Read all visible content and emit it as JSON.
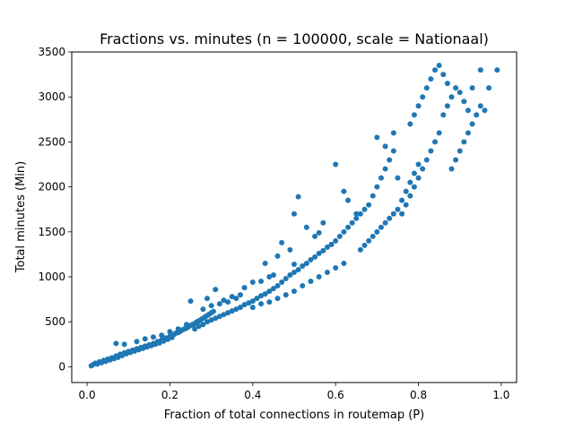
{
  "chart_data": {
    "type": "scatter",
    "title": "Fractions vs. minutes (n = 100000, scale = Nationaal)",
    "xlabel": "Fraction of total connections in routemap (P)",
    "ylabel": "Total minutes (Min)",
    "xlim": [
      -0.037,
      1.037
    ],
    "ylim": [
      -175,
      3500
    ],
    "xticks": [
      0.0,
      0.2,
      0.4,
      0.6,
      0.8,
      1.0
    ],
    "xtick_labels": [
      "0.0",
      "0.2",
      "0.4",
      "0.6",
      "0.8",
      "1.0"
    ],
    "yticks": [
      0,
      500,
      1000,
      1500,
      2000,
      2500,
      3000,
      3500
    ],
    "ytick_labels": [
      "0",
      "500",
      "1000",
      "1500",
      "2000",
      "2500",
      "3000",
      "3500"
    ],
    "grid": false,
    "legend": "none",
    "marker_color": "#1f77b4",
    "points": [
      [
        0.01,
        10
      ],
      [
        0.015,
        25
      ],
      [
        0.02,
        40
      ],
      [
        0.025,
        30
      ],
      [
        0.03,
        55
      ],
      [
        0.035,
        45
      ],
      [
        0.04,
        70
      ],
      [
        0.045,
        60
      ],
      [
        0.05,
        85
      ],
      [
        0.055,
        75
      ],
      [
        0.06,
        100
      ],
      [
        0.065,
        90
      ],
      [
        0.07,
        120
      ],
      [
        0.075,
        105
      ],
      [
        0.08,
        140
      ],
      [
        0.085,
        125
      ],
      [
        0.09,
        155
      ],
      [
        0.095,
        145
      ],
      [
        0.1,
        170
      ],
      [
        0.105,
        160
      ],
      [
        0.11,
        185
      ],
      [
        0.115,
        175
      ],
      [
        0.12,
        200
      ],
      [
        0.125,
        190
      ],
      [
        0.13,
        215
      ],
      [
        0.135,
        205
      ],
      [
        0.14,
        230
      ],
      [
        0.145,
        220
      ],
      [
        0.15,
        245
      ],
      [
        0.155,
        235
      ],
      [
        0.16,
        260
      ],
      [
        0.165,
        250
      ],
      [
        0.17,
        280
      ],
      [
        0.175,
        265
      ],
      [
        0.18,
        300
      ],
      [
        0.185,
        285
      ],
      [
        0.19,
        320
      ],
      [
        0.195,
        305
      ],
      [
        0.2,
        340
      ],
      [
        0.205,
        325
      ],
      [
        0.07,
        260
      ],
      [
        0.09,
        250
      ],
      [
        0.12,
        280
      ],
      [
        0.14,
        310
      ],
      [
        0.16,
        330
      ],
      [
        0.18,
        350
      ],
      [
        0.2,
        390
      ],
      [
        0.22,
        420
      ],
      [
        0.24,
        470
      ],
      [
        0.25,
        730
      ],
      [
        0.21,
        360
      ],
      [
        0.215,
        375
      ],
      [
        0.22,
        380
      ],
      [
        0.225,
        395
      ],
      [
        0.23,
        410
      ],
      [
        0.235,
        420
      ],
      [
        0.24,
        430
      ],
      [
        0.245,
        445
      ],
      [
        0.25,
        460
      ],
      [
        0.255,
        470
      ],
      [
        0.26,
        480
      ],
      [
        0.265,
        500
      ],
      [
        0.27,
        510
      ],
      [
        0.275,
        525
      ],
      [
        0.28,
        540
      ],
      [
        0.285,
        555
      ],
      [
        0.29,
        570
      ],
      [
        0.295,
        585
      ],
      [
        0.3,
        600
      ],
      [
        0.305,
        615
      ],
      [
        0.26,
        420
      ],
      [
        0.27,
        450
      ],
      [
        0.28,
        470
      ],
      [
        0.29,
        500
      ],
      [
        0.3,
        520
      ],
      [
        0.31,
        540
      ],
      [
        0.32,
        560
      ],
      [
        0.33,
        580
      ],
      [
        0.34,
        600
      ],
      [
        0.35,
        620
      ],
      [
        0.28,
        640
      ],
      [
        0.3,
        680
      ],
      [
        0.32,
        700
      ],
      [
        0.33,
        740
      ],
      [
        0.34,
        720
      ],
      [
        0.36,
        760
      ],
      [
        0.37,
        800
      ],
      [
        0.31,
        860
      ],
      [
        0.29,
        760
      ],
      [
        0.35,
        780
      ],
      [
        0.36,
        640
      ],
      [
        0.37,
        660
      ],
      [
        0.38,
        690
      ],
      [
        0.39,
        710
      ],
      [
        0.4,
        730
      ],
      [
        0.41,
        760
      ],
      [
        0.42,
        790
      ],
      [
        0.43,
        810
      ],
      [
        0.44,
        840
      ],
      [
        0.45,
        870
      ],
      [
        0.38,
        880
      ],
      [
        0.4,
        940
      ],
      [
        0.42,
        950
      ],
      [
        0.44,
        1000
      ],
      [
        0.45,
        1020
      ],
      [
        0.43,
        1150
      ],
      [
        0.46,
        1230
      ],
      [
        0.47,
        1380
      ],
      [
        0.49,
        1300
      ],
      [
        0.5,
        1140
      ],
      [
        0.4,
        660
      ],
      [
        0.42,
        700
      ],
      [
        0.44,
        720
      ],
      [
        0.46,
        760
      ],
      [
        0.48,
        800
      ],
      [
        0.5,
        840
      ],
      [
        0.46,
        900
      ],
      [
        0.47,
        940
      ],
      [
        0.48,
        980
      ],
      [
        0.49,
        1020
      ],
      [
        0.5,
        1050
      ],
      [
        0.51,
        1080
      ],
      [
        0.52,
        1120
      ],
      [
        0.53,
        1150
      ],
      [
        0.54,
        1190
      ],
      [
        0.55,
        1220
      ],
      [
        0.56,
        1260
      ],
      [
        0.57,
        1290
      ],
      [
        0.58,
        1330
      ],
      [
        0.59,
        1360
      ],
      [
        0.52,
        900
      ],
      [
        0.54,
        950
      ],
      [
        0.56,
        1000
      ],
      [
        0.58,
        1050
      ],
      [
        0.6,
        1100
      ],
      [
        0.62,
        1150
      ],
      [
        0.5,
        1700
      ],
      [
        0.51,
        1890
      ],
      [
        0.53,
        1550
      ],
      [
        0.55,
        1450
      ],
      [
        0.56,
        1490
      ],
      [
        0.57,
        1600
      ],
      [
        0.6,
        1400
      ],
      [
        0.61,
        1450
      ],
      [
        0.62,
        1500
      ],
      [
        0.63,
        1550
      ],
      [
        0.64,
        1600
      ],
      [
        0.65,
        1650
      ],
      [
        0.66,
        1700
      ],
      [
        0.67,
        1750
      ],
      [
        0.68,
        1800
      ],
      [
        0.6,
        2250
      ],
      [
        0.62,
        1950
      ],
      [
        0.63,
        1850
      ],
      [
        0.65,
        1700
      ],
      [
        0.66,
        1300
      ],
      [
        0.67,
        1350
      ],
      [
        0.68,
        1400
      ],
      [
        0.69,
        1450
      ],
      [
        0.7,
        1500
      ],
      [
        0.71,
        1550
      ],
      [
        0.72,
        1600
      ],
      [
        0.73,
        1650
      ],
      [
        0.74,
        1700
      ],
      [
        0.75,
        1750
      ],
      [
        0.76,
        1850
      ],
      [
        0.77,
        1950
      ],
      [
        0.78,
        2050
      ],
      [
        0.79,
        2150
      ],
      [
        0.8,
        2250
      ],
      [
        0.69,
        1900
      ],
      [
        0.7,
        2000
      ],
      [
        0.71,
        2100
      ],
      [
        0.72,
        2200
      ],
      [
        0.73,
        2300
      ],
      [
        0.74,
        2400
      ],
      [
        0.7,
        2550
      ],
      [
        0.72,
        2450
      ],
      [
        0.74,
        2600
      ],
      [
        0.75,
        2100
      ],
      [
        0.76,
        1700
      ],
      [
        0.77,
        1800
      ],
      [
        0.78,
        1900
      ],
      [
        0.79,
        2000
      ],
      [
        0.8,
        2100
      ],
      [
        0.81,
        2200
      ],
      [
        0.82,
        2300
      ],
      [
        0.83,
        2400
      ],
      [
        0.84,
        2500
      ],
      [
        0.85,
        2600
      ],
      [
        0.78,
        2700
      ],
      [
        0.79,
        2800
      ],
      [
        0.8,
        2900
      ],
      [
        0.81,
        3000
      ],
      [
        0.82,
        3100
      ],
      [
        0.83,
        3200
      ],
      [
        0.84,
        3300
      ],
      [
        0.85,
        3350
      ],
      [
        0.86,
        3250
      ],
      [
        0.87,
        3150
      ],
      [
        0.86,
        2800
      ],
      [
        0.87,
        2900
      ],
      [
        0.88,
        3000
      ],
      [
        0.89,
        3100
      ],
      [
        0.9,
        3050
      ],
      [
        0.91,
        2950
      ],
      [
        0.92,
        2850
      ],
      [
        0.93,
        3100
      ],
      [
        0.95,
        3300
      ],
      [
        0.97,
        3100
      ],
      [
        0.88,
        2200
      ],
      [
        0.89,
        2300
      ],
      [
        0.9,
        2400
      ],
      [
        0.91,
        2500
      ],
      [
        0.92,
        2600
      ],
      [
        0.93,
        2700
      ],
      [
        0.94,
        2800
      ],
      [
        0.95,
        2900
      ],
      [
        0.96,
        2850
      ],
      [
        0.99,
        3300
      ]
    ]
  }
}
